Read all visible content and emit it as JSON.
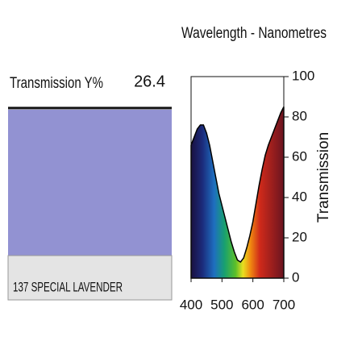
{
  "swatch": {
    "label": "Transmission Y%",
    "value": 26.4,
    "name": "137 SPECIAL LAVENDER",
    "color": "#9292d2"
  },
  "chart_data": {
    "type": "area",
    "title": "Wavelength - Nanometres",
    "y_label": "Transmission",
    "x": [
      400,
      410,
      420,
      430,
      440,
      450,
      460,
      470,
      480,
      490,
      500,
      510,
      520,
      530,
      540,
      550,
      560,
      570,
      580,
      590,
      600,
      610,
      620,
      630,
      640,
      650,
      660,
      670,
      680,
      690,
      700
    ],
    "values": [
      66,
      70,
      74,
      76,
      76,
      72,
      66,
      58,
      50,
      42,
      36,
      30,
      24,
      18,
      13,
      9,
      8,
      10,
      15,
      21,
      28,
      37,
      46,
      54,
      61,
      66,
      70,
      74,
      78,
      82,
      85
    ],
    "xlim": [
      400,
      700
    ],
    "xticks": [
      400,
      500,
      600,
      700
    ],
    "ylim": [
      0,
      100
    ],
    "yticks": [
      0,
      20,
      40,
      60,
      80,
      100
    ]
  }
}
